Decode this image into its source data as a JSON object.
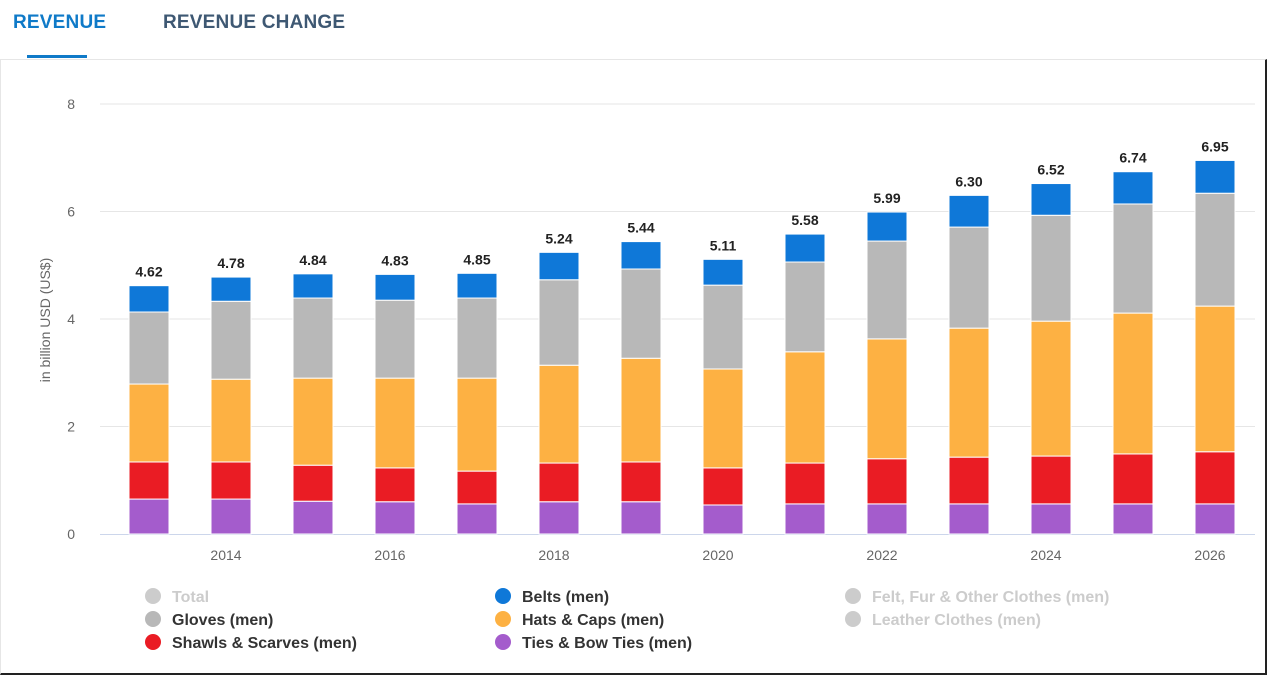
{
  "tabs": [
    {
      "label": "REVENUE",
      "active": true
    },
    {
      "label": "REVENUE CHANGE",
      "active": false
    }
  ],
  "chart_data": {
    "type": "bar",
    "stacked": true,
    "ylabel": "in billion USD (US$)",
    "ylim": [
      0,
      8
    ],
    "yticks": [
      0,
      2,
      4,
      6,
      8
    ],
    "xticks": [
      "2014",
      "2016",
      "2018",
      "2020",
      "2022",
      "2024",
      "2026"
    ],
    "categories": [
      "2013",
      "2014",
      "2015",
      "2016",
      "2017",
      "2018",
      "2019",
      "2020",
      "2021",
      "2022",
      "2023",
      "2024",
      "2025",
      "2026"
    ],
    "totals": [
      "4.62",
      "4.78",
      "4.84",
      "4.83",
      "4.85",
      "5.24",
      "5.44",
      "5.11",
      "5.58",
      "5.99",
      "6.30",
      "6.52",
      "6.74",
      "6.95"
    ],
    "grid": true,
    "legend_position": "bottom",
    "series": [
      {
        "name": "Ties & Bow Ties (men)",
        "color": "#a45ccc",
        "values": [
          0.65,
          0.65,
          0.61,
          0.6,
          0.56,
          0.6,
          0.6,
          0.54,
          0.56,
          0.56,
          0.56,
          0.56,
          0.56,
          0.56
        ]
      },
      {
        "name": "Shawls & Scarves (men)",
        "color": "#ea1c24",
        "values": [
          0.69,
          0.69,
          0.67,
          0.63,
          0.61,
          0.72,
          0.74,
          0.69,
          0.76,
          0.84,
          0.87,
          0.89,
          0.93,
          0.97
        ]
      },
      {
        "name": "Hats & Caps (men)",
        "color": "#fdb143",
        "values": [
          1.45,
          1.54,
          1.62,
          1.67,
          1.73,
          1.82,
          1.93,
          1.84,
          2.07,
          2.23,
          2.4,
          2.51,
          2.62,
          2.71
        ]
      },
      {
        "name": "Gloves (men)",
        "color": "#b8b8b8",
        "values": [
          1.34,
          1.45,
          1.49,
          1.45,
          1.49,
          1.59,
          1.66,
          1.56,
          1.67,
          1.82,
          1.88,
          1.97,
          2.03,
          2.1
        ]
      },
      {
        "name": "Belts (men)",
        "color": "#0f78d8",
        "values": [
          0.49,
          0.45,
          0.45,
          0.48,
          0.46,
          0.51,
          0.51,
          0.48,
          0.52,
          0.54,
          0.59,
          0.59,
          0.6,
          0.61
        ]
      }
    ],
    "legend": [
      {
        "name": "Total",
        "color": "#cccccc",
        "enabled": false
      },
      {
        "name": "Belts (men)",
        "color": "#0f78d8",
        "enabled": true
      },
      {
        "name": "Felt, Fur & Other Clothes (men)",
        "color": "#cccccc",
        "enabled": false
      },
      {
        "name": "Gloves (men)",
        "color": "#b8b8b8",
        "enabled": true
      },
      {
        "name": "Hats & Caps (men)",
        "color": "#fdb143",
        "enabled": true
      },
      {
        "name": "Leather Clothes (men)",
        "color": "#cccccc",
        "enabled": false
      },
      {
        "name": "Shawls & Scarves (men)",
        "color": "#ea1c24",
        "enabled": true
      },
      {
        "name": "Ties & Bow Ties (men)",
        "color": "#a45ccc",
        "enabled": true
      }
    ]
  }
}
